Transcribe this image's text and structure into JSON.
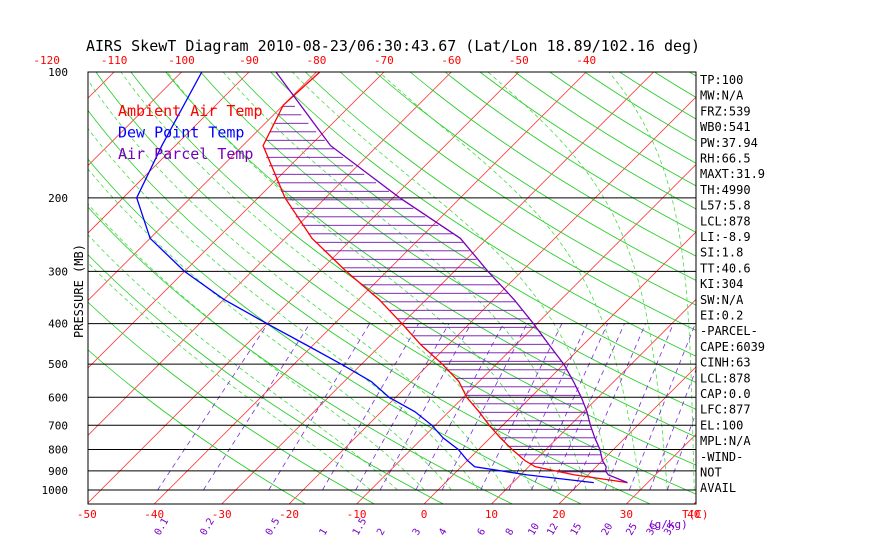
{
  "chart_data": {
    "type": "skewt",
    "title": "AIRS SkewT Diagram 2010-08-23/06:30:43.67 (Lat/Lon 18.89/102.16 deg)",
    "ylabel": "PRESSURE (MB)",
    "xlabel_bottom": "T(C)",
    "mixing_ratio_label": "(g/kg)",
    "pressure_ticks": [
      100,
      200,
      300,
      400,
      500,
      600,
      700,
      800,
      900,
      1000
    ],
    "top_temp_ticks": [
      -120,
      -110,
      -100,
      -90,
      -80,
      -70,
      -60,
      -50,
      -40
    ],
    "bottom_temp_ticks": [
      -50,
      -40,
      -30,
      -20,
      -10,
      0,
      10,
      20,
      30,
      40
    ],
    "mixing_ratio_ticks": [
      "0.1",
      "0.2",
      "0.5",
      "1",
      "1.5",
      "2",
      "3",
      "4",
      "6",
      "8",
      "10",
      "12",
      "15",
      "20",
      "25",
      "30",
      "35"
    ],
    "legend": [
      {
        "label": "Ambient Air Temp",
        "color": "#ff0000"
      },
      {
        "label": "Dew Point Temp",
        "color": "#0000ff"
      },
      {
        "label": "Air Parcel Temp",
        "color": "#7700bb"
      }
    ],
    "series": [
      {
        "name": "Ambient Air Temp",
        "color": "#ff0000",
        "points": [
          [
            100,
            -79.5
          ],
          [
            120,
            -80
          ],
          [
            150,
            -77
          ],
          [
            200,
            -66
          ],
          [
            250,
            -56
          ],
          [
            300,
            -46
          ],
          [
            350,
            -37
          ],
          [
            400,
            -30
          ],
          [
            450,
            -24
          ],
          [
            500,
            -18
          ],
          [
            550,
            -13
          ],
          [
            600,
            -9.5
          ],
          [
            650,
            -5.5
          ],
          [
            700,
            -2
          ],
          [
            750,
            1.5
          ],
          [
            800,
            5
          ],
          [
            850,
            8.5
          ],
          [
            880,
            11
          ],
          [
            920,
            18
          ],
          [
            960,
            27
          ]
        ]
      },
      {
        "name": "Dew Point Temp",
        "color": "#0000ff",
        "points": [
          [
            100,
            -97
          ],
          [
            150,
            -92
          ],
          [
            200,
            -88
          ],
          [
            250,
            -80
          ],
          [
            300,
            -70
          ],
          [
            350,
            -60
          ],
          [
            400,
            -50
          ],
          [
            450,
            -41
          ],
          [
            500,
            -33
          ],
          [
            550,
            -26
          ],
          [
            600,
            -21
          ],
          [
            650,
            -15
          ],
          [
            700,
            -10.5
          ],
          [
            750,
            -7
          ],
          [
            800,
            -3
          ],
          [
            850,
            0
          ],
          [
            880,
            2
          ],
          [
            920,
            11
          ],
          [
            960,
            22
          ]
        ]
      },
      {
        "name": "Air Parcel Temp",
        "color": "#7700bb",
        "points": [
          [
            100,
            -86
          ],
          [
            150,
            -67
          ],
          [
            200,
            -49
          ],
          [
            250,
            -34
          ],
          [
            300,
            -25
          ],
          [
            350,
            -17
          ],
          [
            400,
            -10.5
          ],
          [
            450,
            -5
          ],
          [
            500,
            0
          ],
          [
            550,
            4
          ],
          [
            600,
            7.5
          ],
          [
            650,
            10.5
          ],
          [
            700,
            13
          ],
          [
            750,
            15.5
          ],
          [
            800,
            18
          ],
          [
            850,
            20
          ],
          [
            880,
            21.5
          ],
          [
            900,
            22
          ],
          [
            920,
            23
          ],
          [
            960,
            27
          ]
        ]
      }
    ],
    "indices": [
      "TP:100",
      "MW:N/A",
      "FRZ:539",
      "WB0:541",
      "PW:37.94",
      "RH:66.5",
      "MAXT:31.9",
      "TH:4990",
      "L57:5.8",
      "LCL:878",
      "LI:-8.9",
      "SI:1.8",
      "TT:40.6",
      "KI:304",
      "SW:N/A",
      "EI:0.2",
      "-PARCEL-",
      "CAPE:6039",
      "CINH:63",
      "LCL:878",
      "CAP:0.0",
      "LFC:877",
      "EL:100",
      "MPL:N/A",
      "-WIND-",
      "NOT",
      "AVAIL"
    ]
  }
}
